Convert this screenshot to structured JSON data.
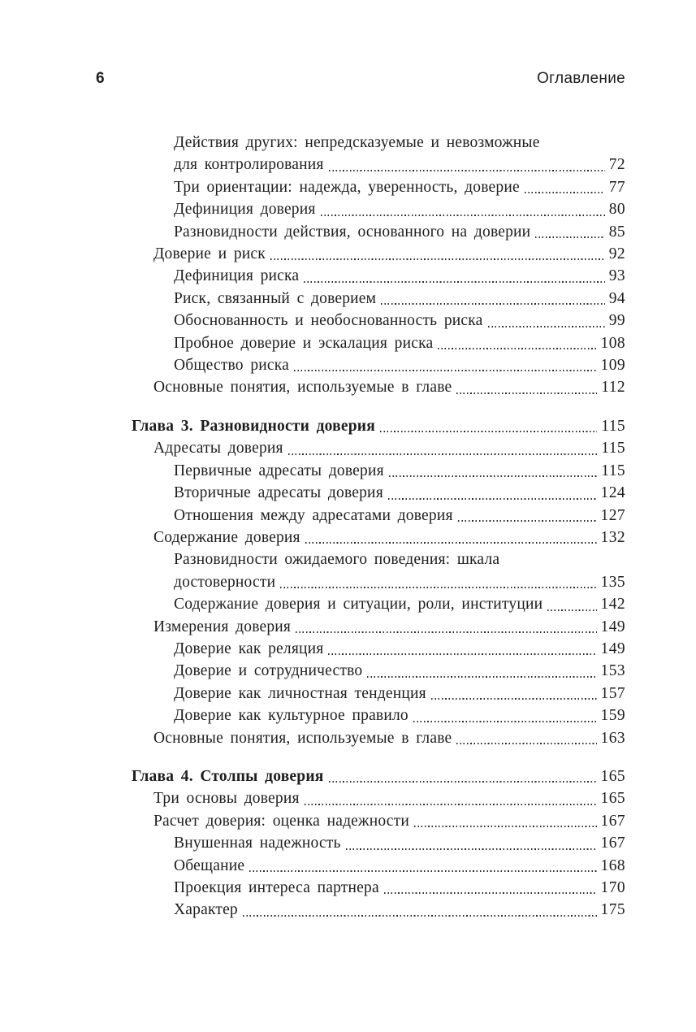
{
  "page_header": {
    "page_number": "6",
    "title": "Оглавление"
  },
  "colors": {
    "background": "#ffffff",
    "text": "#1e1e1e",
    "dot_leader": "#2e2e2e"
  },
  "toc": {
    "sections": [
      {
        "entries": [
          {
            "level": 2,
            "bold": false,
            "lines": [
              "Действия других: непредсказуемые и невозможные",
              "для контролирования"
            ],
            "page": "72"
          },
          {
            "level": 2,
            "bold": false,
            "lines": [
              "Три ориентации: надежда, уверенность, доверие"
            ],
            "page": "77"
          },
          {
            "level": 2,
            "bold": false,
            "lines": [
              "Дефиниция доверия"
            ],
            "page": "80"
          },
          {
            "level": 2,
            "bold": false,
            "lines": [
              "Разновидности действия, основанного на доверии"
            ],
            "page": "85"
          },
          {
            "level": 1,
            "bold": false,
            "lines": [
              "Доверие и риск"
            ],
            "page": "92"
          },
          {
            "level": 2,
            "bold": false,
            "lines": [
              "Дефиниция риска"
            ],
            "page": "93"
          },
          {
            "level": 2,
            "bold": false,
            "lines": [
              "Риск, связанный с доверием"
            ],
            "page": "94"
          },
          {
            "level": 2,
            "bold": false,
            "lines": [
              "Обоснованность и необоснованность риска"
            ],
            "page": "99"
          },
          {
            "level": 2,
            "bold": false,
            "lines": [
              "Пробное доверие и эскалация риска"
            ],
            "page": "108"
          },
          {
            "level": 2,
            "bold": false,
            "lines": [
              "Общество риска"
            ],
            "page": "109"
          },
          {
            "level": 1,
            "bold": false,
            "lines": [
              "Основные понятия, используемые в главе"
            ],
            "page": "112"
          }
        ]
      },
      {
        "entries": [
          {
            "level": 0,
            "bold": true,
            "lines": [
              "Глава 3. Разновидности доверия"
            ],
            "page": "115"
          },
          {
            "level": 1,
            "bold": false,
            "lines": [
              "Адресаты доверия"
            ],
            "page": "115"
          },
          {
            "level": 2,
            "bold": false,
            "lines": [
              "Первичные адресаты доверия"
            ],
            "page": "115"
          },
          {
            "level": 2,
            "bold": false,
            "lines": [
              "Вторичные адресаты доверия"
            ],
            "page": "124"
          },
          {
            "level": 2,
            "bold": false,
            "lines": [
              "Отношения между адресатами доверия"
            ],
            "page": "127"
          },
          {
            "level": 1,
            "bold": false,
            "lines": [
              "Содержание доверия"
            ],
            "page": "132"
          },
          {
            "level": 2,
            "bold": false,
            "lines": [
              "Разновидности ожидаемого поведения: шкала",
              "достоверности"
            ],
            "page": "135"
          },
          {
            "level": 2,
            "bold": false,
            "lines": [
              "Содержание доверия и ситуации, роли, институции"
            ],
            "page": "142"
          },
          {
            "level": 1,
            "bold": false,
            "lines": [
              "Измерения доверия"
            ],
            "page": "149"
          },
          {
            "level": 2,
            "bold": false,
            "lines": [
              "Доверие как реляция"
            ],
            "page": "149"
          },
          {
            "level": 2,
            "bold": false,
            "lines": [
              "Доверие и сотрудничество"
            ],
            "page": "153"
          },
          {
            "level": 2,
            "bold": false,
            "lines": [
              "Доверие как личностная тенденция"
            ],
            "page": "157"
          },
          {
            "level": 2,
            "bold": false,
            "lines": [
              "Доверие как культурное правило"
            ],
            "page": "159"
          },
          {
            "level": 1,
            "bold": false,
            "lines": [
              "Основные понятия, используемые в главе"
            ],
            "page": "163"
          }
        ]
      },
      {
        "entries": [
          {
            "level": 0,
            "bold": true,
            "lines": [
              "Глава 4. Столпы доверия"
            ],
            "page": "165"
          },
          {
            "level": 1,
            "bold": false,
            "lines": [
              "Три основы доверия"
            ],
            "page": "165"
          },
          {
            "level": 1,
            "bold": false,
            "lines": [
              "Расчет доверия: оценка надежности"
            ],
            "page": "167"
          },
          {
            "level": 2,
            "bold": false,
            "lines": [
              "Внушенная надежность"
            ],
            "page": "167"
          },
          {
            "level": 2,
            "bold": false,
            "lines": [
              "Обещание"
            ],
            "page": "168"
          },
          {
            "level": 2,
            "bold": false,
            "lines": [
              "Проекция интереса партнера"
            ],
            "page": "170"
          },
          {
            "level": 2,
            "bold": false,
            "lines": [
              "Характер"
            ],
            "page": "175"
          }
        ]
      }
    ]
  }
}
